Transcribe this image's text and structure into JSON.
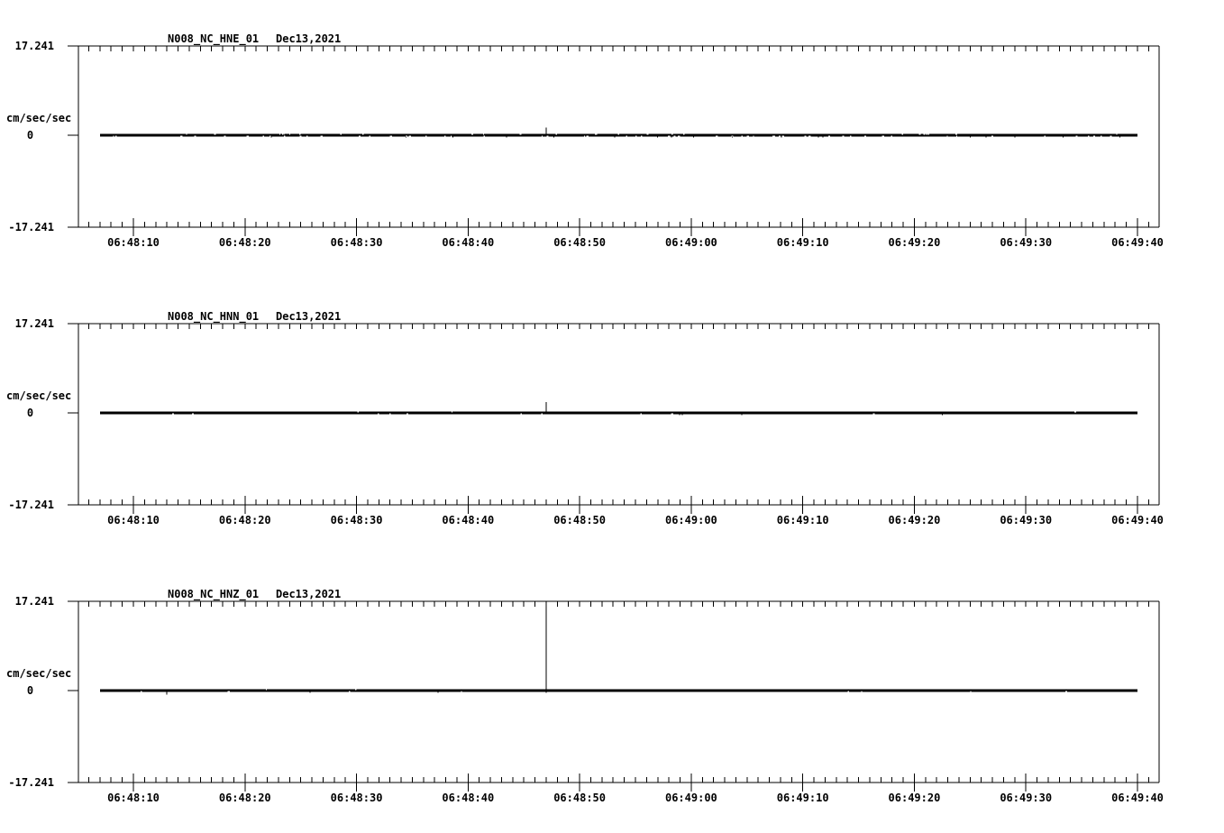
{
  "page": {
    "background": "#ffffff",
    "foreground": "#000000"
  },
  "chart_data": {
    "type": "line",
    "kind": "seismic-acceleration-waveform-strips",
    "grid": false,
    "legend": "none",
    "y_axis": {
      "units": "cm/sec/sec",
      "ymax_label": "17.241",
      "zero_label": "0",
      "ymin_label": "-17.241",
      "ylim": [
        -17.241,
        17.241
      ]
    },
    "x_axis": {
      "start": "06:48:05",
      "end": "06:49:42",
      "major_tick_interval_sec": 10,
      "minor_tick_interval_sec": 1,
      "tick_labels": [
        "06:48:10",
        "06:48:20",
        "06:48:30",
        "06:48:40",
        "06:48:50",
        "06:49:00",
        "06:49:10",
        "06:49:20",
        "06:49:30",
        "06:49:40"
      ]
    },
    "panels": [
      {
        "station": "N008_NC_HNE_01",
        "date": "Dec13,2021",
        "channel": "HNE",
        "trace": {
          "baseline_value": 0,
          "start": "06:48:07",
          "end": "06:49:40",
          "noise_level": "high",
          "events": [
            {
              "time": "06:48:47",
              "amplitude": 1.5,
              "clipped": false
            }
          ]
        }
      },
      {
        "station": "N008_NC_HNN_01",
        "date": "Dec13,2021",
        "channel": "HNN",
        "trace": {
          "baseline_value": 0,
          "start": "06:48:07",
          "end": "06:49:40",
          "noise_level": "low",
          "events": [
            {
              "time": "06:48:47",
              "amplitude": 2.1,
              "clipped": false
            }
          ]
        }
      },
      {
        "station": "N008_NC_HNZ_01",
        "date": "Dec13,2021",
        "channel": "HNZ",
        "trace": {
          "baseline_value": 0,
          "start": "06:48:07",
          "end": "06:49:40",
          "noise_level": "low",
          "events": [
            {
              "time": "06:48:13",
              "amplitude": -0.8,
              "clipped": false
            },
            {
              "time": "06:48:47",
              "amplitude": 17.241,
              "clipped": true
            }
          ]
        }
      }
    ]
  }
}
